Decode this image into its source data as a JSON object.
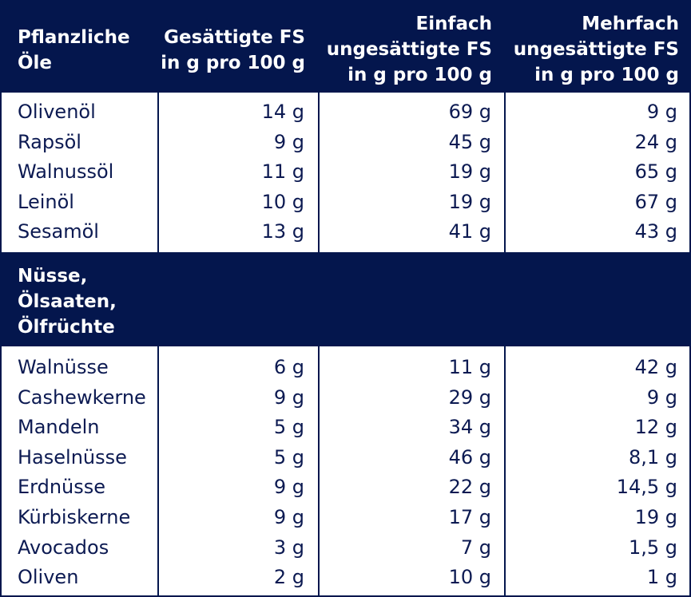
{
  "header": {
    "col0": "Pflanzliche\nÖle",
    "col1": "Gesättigte FS\nin g pro 100 g",
    "col2": "Einfach\nungesättigte FS\nin g pro 100 g",
    "col3": "Mehrfach\nungesättigte FS\nin g pro 100 g"
  },
  "oils": [
    {
      "name": "Olivenöl",
      "saturated": "14 g",
      "mono": "69 g",
      "poly": "9 g"
    },
    {
      "name": "Rapsöl",
      "saturated": "9 g",
      "mono": "45 g",
      "poly": "24 g"
    },
    {
      "name": "Walnussöl",
      "saturated": "11 g",
      "mono": "19 g",
      "poly": "65 g"
    },
    {
      "name": "Leinöl",
      "saturated": "10 g",
      "mono": "19 g",
      "poly": "67 g"
    },
    {
      "name": "Sesamöl",
      "saturated": "13 g",
      "mono": "41 g",
      "poly": "43 g"
    }
  ],
  "section2": {
    "title": "Nüsse,\nÖlsaaten,\nÖlfrüchte"
  },
  "nuts": [
    {
      "name": "Walnüsse",
      "saturated": "6 g",
      "mono": "11 g",
      "poly": "42 g"
    },
    {
      "name": "Cashewkerne",
      "saturated": "9 g",
      "mono": "29 g",
      "poly": "9 g"
    },
    {
      "name": "Mandeln",
      "saturated": "5 g",
      "mono": "34 g",
      "poly": "12 g"
    },
    {
      "name": "Haselnüsse",
      "saturated": "5 g",
      "mono": "46 g",
      "poly": "8,1 g"
    },
    {
      "name": "Erdnüsse",
      "saturated": "9 g",
      "mono": "22 g",
      "poly": "14,5 g"
    },
    {
      "name": "Kürbiskerne",
      "saturated": "9 g",
      "mono": "17 g",
      "poly": "19 g"
    },
    {
      "name": "Avocados",
      "saturated": "3 g",
      "mono": "7 g",
      "poly": "1,5 g"
    },
    {
      "name": "Oliven",
      "saturated": "2 g",
      "mono": "10 g",
      "poly": "1 g"
    }
  ],
  "colors": {
    "header_bg": "#04164d",
    "text": "#0c1a52",
    "header_text": "#ffffff"
  }
}
